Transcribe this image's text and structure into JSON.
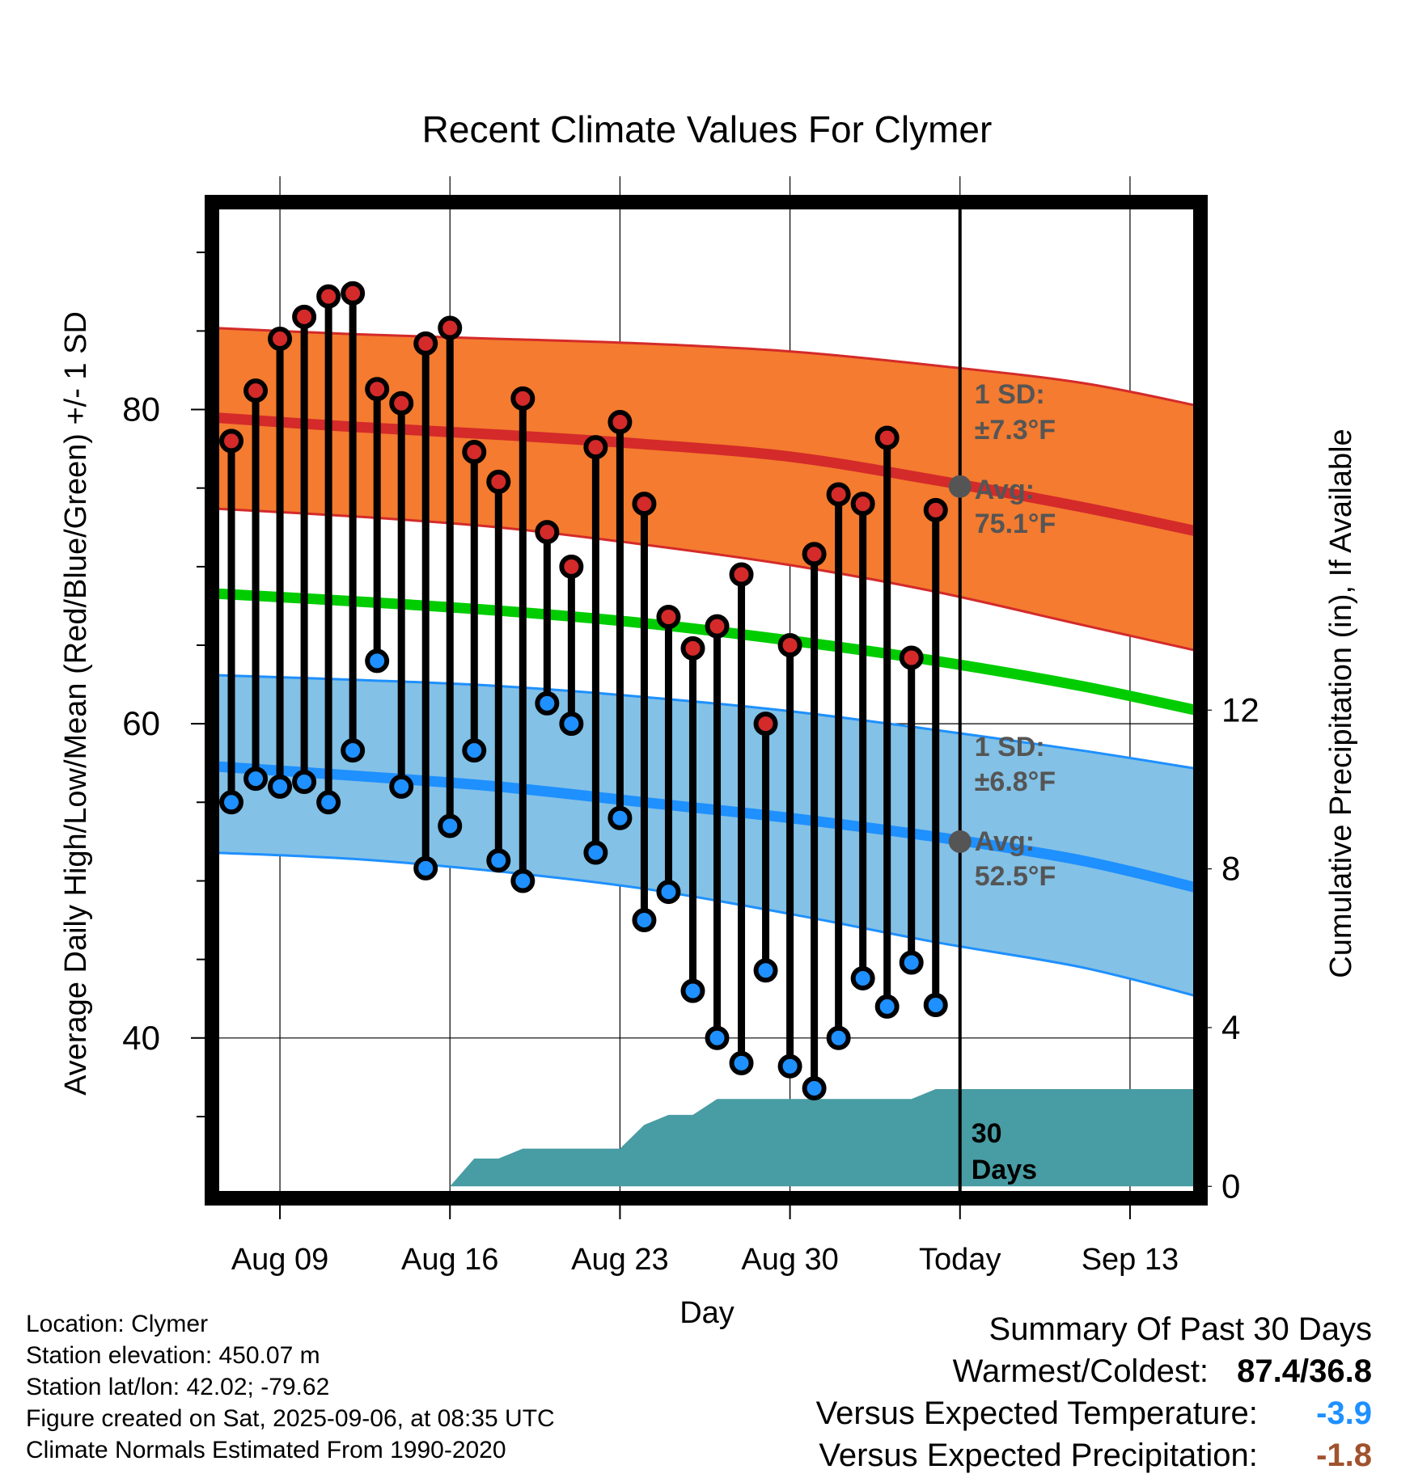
{
  "chart_data": {
    "type": "line",
    "title": "Recent Climate Values For Clymer",
    "xlabel": "Day",
    "ylabel": "Average Daily High/Low/Mean (Red/Blue/Green) +/- 1 SD",
    "y2label": "Cumulative Precipitation (in), If Available",
    "x_tick_labels": [
      "Aug 09",
      "Aug 16",
      "Aug 23",
      "Aug 30",
      "Today",
      "Sep 13"
    ],
    "x_tick_days": [
      0,
      7,
      14,
      21,
      28,
      35
    ],
    "xlim_days": [
      -2.8,
      37.9
    ],
    "ylim": [
      29.8,
      93.2
    ],
    "y_ticks": [
      40,
      60,
      80
    ],
    "y2lim": [
      -0.3,
      24.8
    ],
    "y2_ticks": [
      0,
      4,
      8,
      12
    ],
    "grid": true,
    "days": [
      -2,
      -1,
      0,
      1,
      2,
      3,
      4,
      5,
      6,
      7,
      8,
      9,
      10,
      11,
      12,
      13,
      14,
      15,
      16,
      17,
      18,
      19,
      20,
      21,
      22,
      23,
      24,
      25,
      26,
      27
    ],
    "daily_high": [
      78,
      81.2,
      84.5,
      85.9,
      87.2,
      87.4,
      81.3,
      80.4,
      84.2,
      85.2,
      77.3,
      75.4,
      80.7,
      72.2,
      70,
      77.6,
      79.2,
      74,
      66.8,
      64.8,
      66.2,
      69.5,
      60,
      65,
      70.8,
      74.6,
      74,
      78.2,
      64.2,
      73.6
    ],
    "daily_low": [
      55,
      56.5,
      56,
      56.3,
      55,
      58.3,
      64,
      56,
      50.8,
      53.5,
      58.3,
      51.3,
      50,
      61.3,
      60,
      51.8,
      54,
      47.5,
      49.3,
      43,
      40,
      38.4,
      44.3,
      38.2,
      36.8,
      40,
      43.8,
      42,
      44.8,
      42.1
    ],
    "normal_high": {
      "name": "Avg: 75.1°F",
      "label": "Avg:",
      "value": "75.1°F",
      "days": [
        -2.8,
        3,
        9,
        15,
        21,
        27,
        33,
        37.9
      ],
      "values": [
        79.5,
        78.9,
        78.4,
        77.8,
        77,
        75.5,
        73.8,
        72.2
      ],
      "sd_label": "1 SD:",
      "sd_value": "±7.3°F",
      "sd_upper": [
        85.2,
        84.8,
        84.5,
        84.2,
        83.7,
        82.8,
        81.7,
        80.2
      ],
      "sd_lower": [
        73.7,
        73.2,
        72.5,
        71.4,
        70.1,
        68.4,
        66.3,
        64.6
      ]
    },
    "normal_mean": {
      "days": [
        -2.8,
        3,
        9,
        15,
        21,
        27,
        33,
        37.9
      ],
      "values": [
        68.3,
        67.8,
        67.2,
        66.4,
        65.3,
        64,
        62.4,
        60.8
      ]
    },
    "normal_low": {
      "name": "Avg: 52.5°F",
      "label": "Avg:",
      "value": "52.5°F",
      "days": [
        -2.8,
        3,
        9,
        15,
        21,
        27,
        33,
        37.9
      ],
      "values": [
        57.3,
        56.7,
        56,
        55,
        54,
        52.8,
        51.3,
        49.5
      ],
      "sd_label": "1 SD:",
      "sd_value": "±6.8°F",
      "sd_upper": [
        63.1,
        62.8,
        62.4,
        61.7,
        60.8,
        59.6,
        58.3,
        57.1
      ],
      "sd_lower": [
        51.8,
        51.4,
        50.6,
        49.5,
        47.9,
        46.1,
        44.5,
        42.6
      ]
    },
    "precip_cumulative": {
      "days": [
        7,
        8,
        9,
        10,
        11,
        14,
        15,
        16,
        17,
        18,
        19,
        26,
        27,
        37.9
      ],
      "values": [
        0,
        0.7,
        0.7,
        0.95,
        0.95,
        0.95,
        1.55,
        1.8,
        1.8,
        2.2,
        2.2,
        2.2,
        2.45,
        2.45
      ]
    },
    "today_day": 28,
    "window_label": [
      "30",
      "Days"
    ]
  },
  "footer": {
    "location": "Location: Clymer",
    "elevation": "Station elevation: 450.07 m",
    "latlon": "Station lat/lon: 42.02; -79.62",
    "created": "Figure created on Sat, 2025-09-06, at 08:35 UTC",
    "normals": "Climate Normals Estimated From 1990-2020"
  },
  "summary": {
    "title": "Summary Of Past 30 Days",
    "warmest_label": "Warmest/Coldest:",
    "warmest_value": "87.4/36.8",
    "temp_label": "Versus Expected Temperature:",
    "temp_value": "-3.9",
    "precip_label": "Versus Expected Precipitation:",
    "precip_value": "-1.8"
  },
  "colors": {
    "high_band": "#f47b2f",
    "high_line": "#d42a2a",
    "low_band": "#83c1e6",
    "low_line": "#1e90ff",
    "mean_line": "#00cc00",
    "precip": "#489ca3",
    "high_marker": "#d42a2a",
    "low_marker": "#1e90ff",
    "annotation": "#555555",
    "temp_value": "#1e90ff",
    "precip_value": "#a0522d"
  }
}
